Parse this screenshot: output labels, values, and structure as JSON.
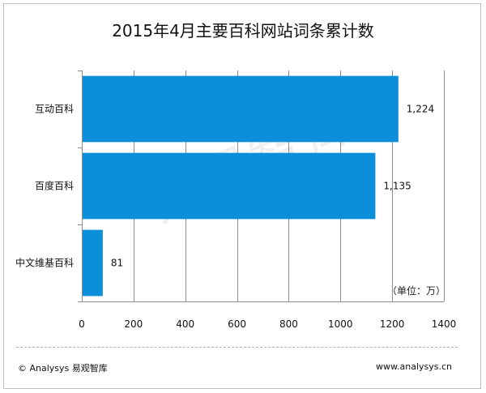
{
  "watermark": "易观智库",
  "unit_note": "（单位：万）",
  "footer": {
    "copyright": "© Analysys 易观智库",
    "website": "www.analysys.cn"
  },
  "colors": {
    "bar": "#0a8fd8",
    "grid": "#8c8c8c"
  },
  "chart_data": {
    "type": "bar",
    "orientation": "horizontal",
    "title": "2015年4月主要百科网站词条累计数",
    "categories": [
      "互动百科",
      "百度百科",
      "中文维基百科"
    ],
    "values": [
      1224,
      1135,
      81
    ],
    "data_labels": [
      "1,224",
      "1,135",
      "81"
    ],
    "xticks": [
      0,
      200,
      400,
      600,
      800,
      1000,
      1200,
      1400
    ],
    "xlim": [
      0,
      1400
    ],
    "grid": true,
    "legend": "none"
  }
}
